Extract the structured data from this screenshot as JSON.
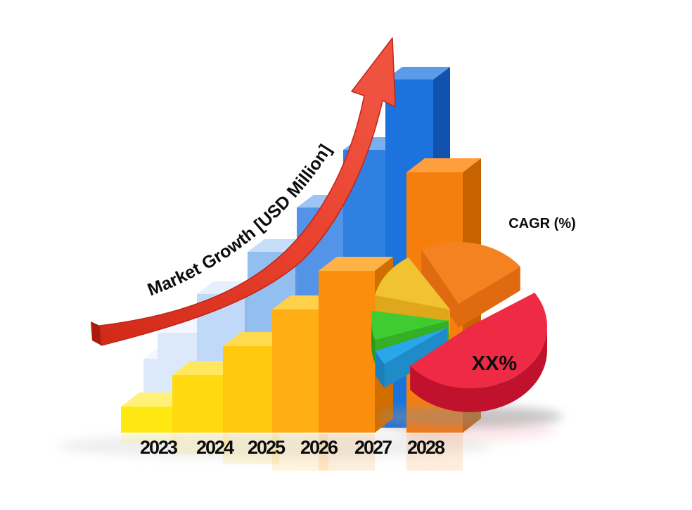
{
  "labels": {
    "arrow_title": "Market Growth [USD Million]",
    "cagr": "CAGR (%)",
    "pie_value": "XX%"
  },
  "colors": {
    "arrow_red": "#E8402C",
    "arrow_red_dark": "#BF2516",
    "arrow_tail_cap": "#A81C0E",
    "text": "#0C0C0C",
    "background": "#FFFFFF"
  },
  "chart_data": [
    {
      "type": "bar",
      "title": "Market Growth [USD Million]",
      "categories": [
        "2023",
        "2024",
        "2025",
        "2026",
        "2027",
        "2028"
      ],
      "series": [
        {
          "name": "front-bars-yellow-orange",
          "values": [
            3.7,
            8.2,
            12.3,
            17.5,
            23.0,
            37.0
          ],
          "colors": [
            [
              "#FFF07A",
              "#FFE712",
              "#E0B900"
            ],
            [
              "#FFE75E",
              "#FFDA10",
              "#DFAC00"
            ],
            [
              "#FFDA4E",
              "#FFC80E",
              "#DC9E00"
            ],
            [
              "#FFD04A",
              "#FFAE14",
              "#DE8C00"
            ],
            [
              "#FFB347",
              "#FB8E0C",
              "#D06E00"
            ],
            [
              "#FF9E3D",
              "#F57E0D",
              "#C66300"
            ]
          ]
        },
        {
          "name": "back-bars-blue",
          "values": [
            13.5,
            19.0,
            25.0,
            31.3,
            39.5,
            49.5
          ],
          "colors": [
            [
              "#F2F7FF",
              "#DCE9FB",
              "#AECBF0"
            ],
            [
              "#E6F0FD",
              "#C0D9F8",
              "#92B8EC"
            ],
            [
              "#C6DEFA",
              "#92BEF0",
              "#6096DE"
            ],
            [
              "#9CC5F4",
              "#5494E8",
              "#3070CA"
            ],
            [
              "#79AEEF",
              "#2F80E1",
              "#1D5DB9"
            ],
            [
              "#5C9BEA",
              "#1C73DD",
              "#1052AE"
            ]
          ]
        }
      ],
      "unit": "USD Million",
      "value_axis_visible": false,
      "trend": "increasing"
    },
    {
      "type": "pie",
      "title": "CAGR (%)",
      "slices": [
        {
          "name": "red",
          "percent": 51,
          "label": "XX%",
          "colors": [
            "#EE2A45",
            "#DC2038",
            "#C0122C"
          ]
        },
        {
          "name": "orange",
          "percent": 24,
          "label": "",
          "colors": [
            "#F58220",
            "#E06A10",
            "#C95F0C"
          ]
        },
        {
          "name": "yellow",
          "percent": 13,
          "label": "",
          "colors": [
            "#F1C232",
            "#DFA81C",
            "#C89614"
          ]
        },
        {
          "name": "green",
          "percent": 8,
          "label": "",
          "colors": [
            "#3FCC33",
            "#34AF26",
            "#2A9A1E"
          ]
        },
        {
          "name": "blue",
          "percent": 4,
          "label": "",
          "colors": [
            "#29A7E8",
            "#1F8CC9",
            "#1A7FBD"
          ]
        }
      ]
    }
  ]
}
